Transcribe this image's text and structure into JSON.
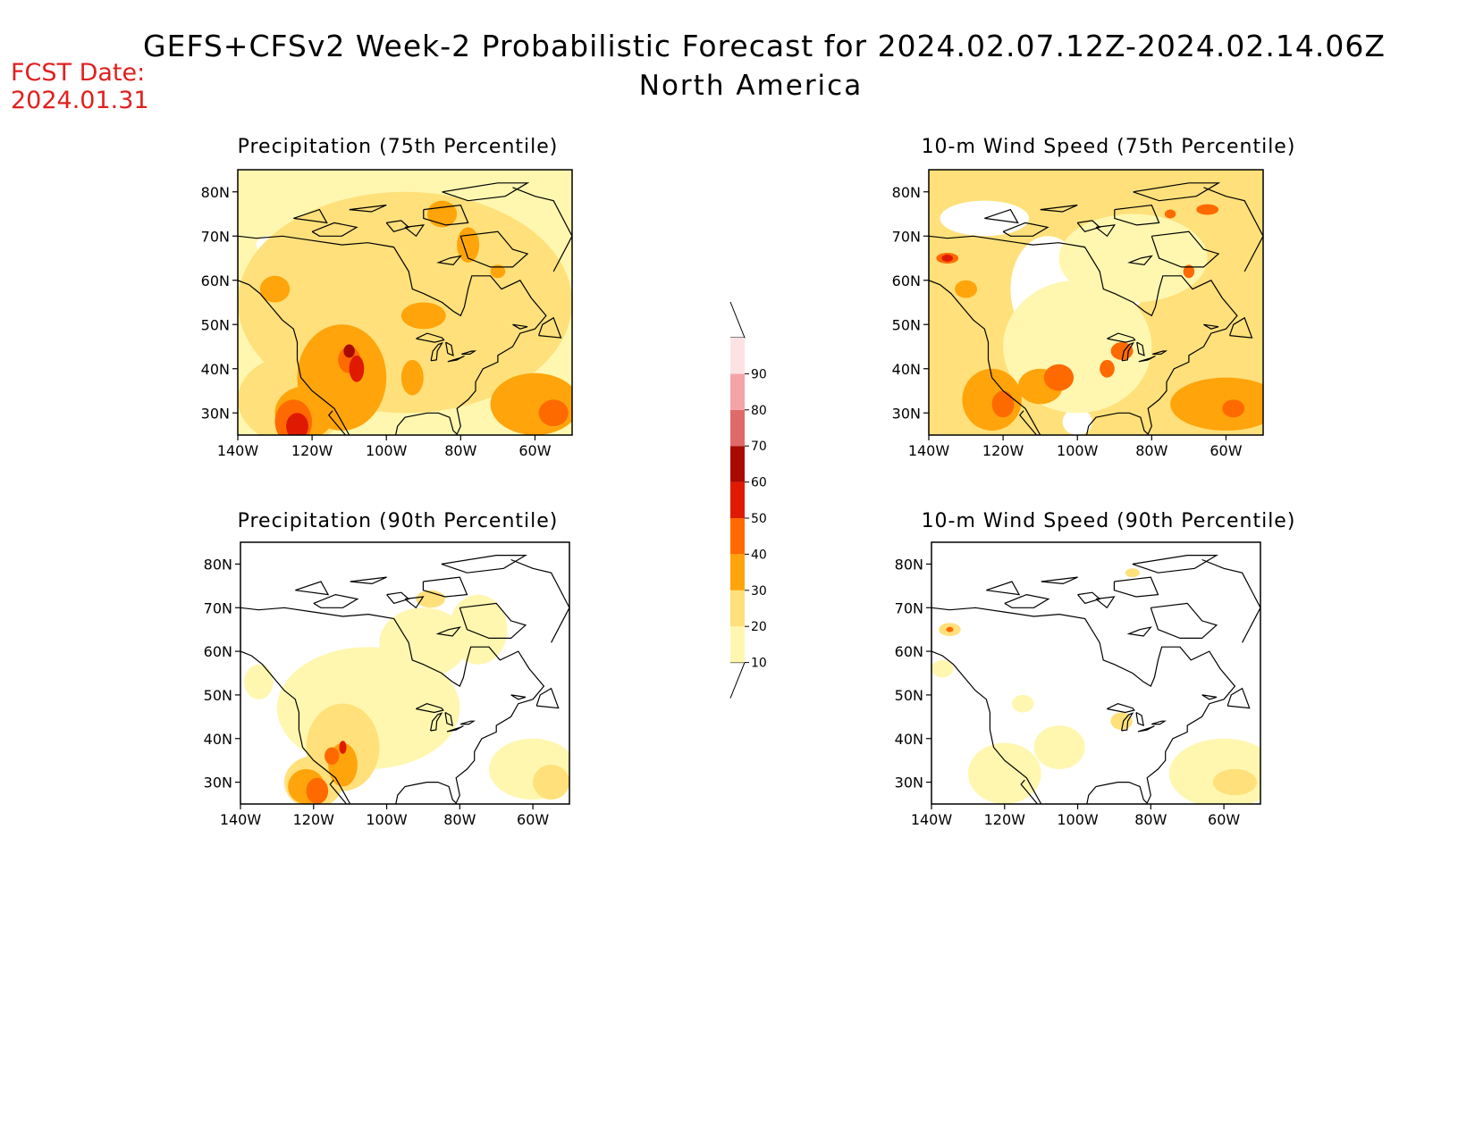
{
  "header": {
    "fcst_date_label": "FCST Date:",
    "fcst_date_value": "2024.01.31",
    "title": "GEFS+CFSv2 Week-2 Probabilistic Forecast for 2024.02.07.12Z-2024.02.14.06Z",
    "region": "North America"
  },
  "panels": [
    {
      "title": "Precipitation (75th Percentile)"
    },
    {
      "title": "10-m Wind Speed (75th Percentile)"
    },
    {
      "title": "Precipitation (90th Percentile)"
    },
    {
      "title": "10-m Wind Speed (90th Percentile)"
    }
  ],
  "axes": {
    "lon_labels": [
      "140W",
      "120W",
      "100W",
      "80W",
      "60W"
    ],
    "lat_labels": [
      "80N",
      "70N",
      "60N",
      "50N",
      "40N",
      "30N"
    ],
    "lon_values": [
      -140,
      -120,
      -100,
      -80,
      -60
    ],
    "lat_values": [
      80,
      70,
      60,
      50,
      40,
      30
    ],
    "lon_range": [
      -140,
      -50
    ],
    "lat_range": [
      25,
      85
    ]
  },
  "colorbar": {
    "levels": [
      "10",
      "20",
      "30",
      "40",
      "50",
      "60",
      "70",
      "80",
      "90"
    ],
    "colors": [
      "#fff7b0",
      "#ffe07a",
      "#ffa40a",
      "#ff6a00",
      "#e01a00",
      "#a80a00",
      "#de6a6a",
      "#f4a3a8",
      "#fde2e4"
    ]
  }
}
